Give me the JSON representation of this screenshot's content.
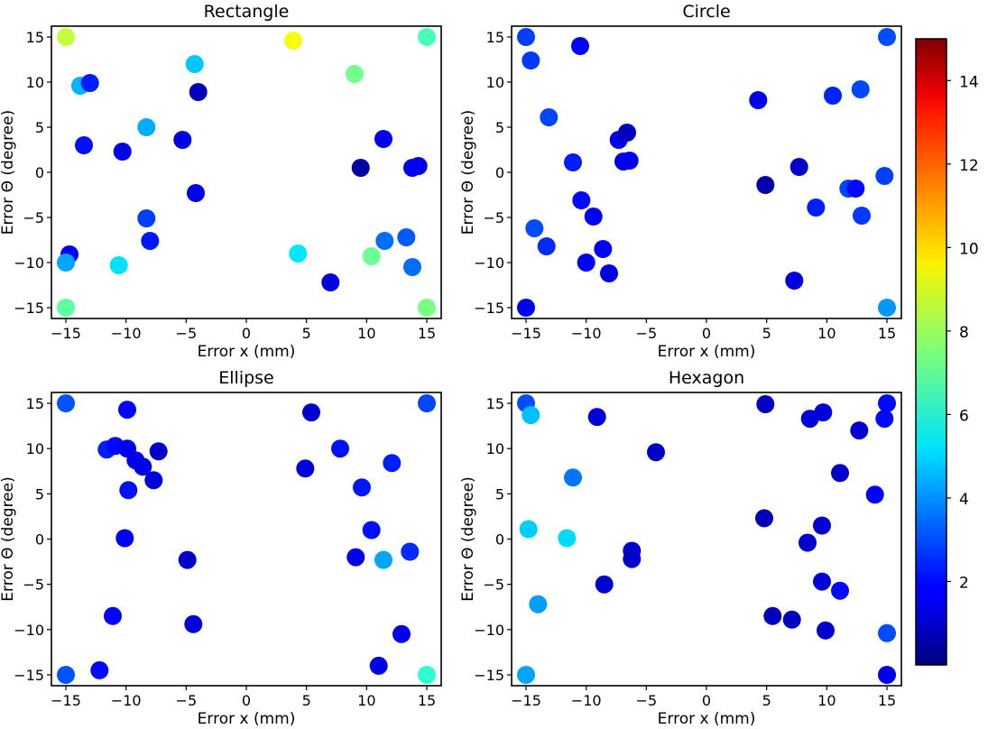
{
  "chart_data": [
    {
      "type": "scatter",
      "title": "Rectangle",
      "xlabel": "Error x (mm)",
      "ylabel": "Error Θ (degree)",
      "xlim": [
        -16.2,
        16.2
      ],
      "ylim": [
        -16.2,
        16.2
      ],
      "xticks": [
        -15,
        -10,
        -5,
        0,
        5,
        10,
        15
      ],
      "yticks": [
        -15,
        -10,
        -5,
        0,
        5,
        10,
        15
      ],
      "grid": false,
      "points": [
        {
          "x": -15,
          "y": 15,
          "c": 8.5
        },
        {
          "x": 3.9,
          "y": 14.6,
          "c": 9.2
        },
        {
          "x": 15,
          "y": 15,
          "c": 6.7
        },
        {
          "x": -4.3,
          "y": 12,
          "c": 4.8
        },
        {
          "x": 9,
          "y": 10.9,
          "c": 7.3
        },
        {
          "x": -13.8,
          "y": 9.6,
          "c": 4.5
        },
        {
          "x": -13,
          "y": 9.9,
          "c": 2.3
        },
        {
          "x": -4,
          "y": 8.9,
          "c": 0.9
        },
        {
          "x": -8.3,
          "y": 5,
          "c": 4.4
        },
        {
          "x": -5.3,
          "y": 3.6,
          "c": 1.5
        },
        {
          "x": 11.4,
          "y": 3.7,
          "c": 1.6
        },
        {
          "x": -13.5,
          "y": 3,
          "c": 2.1
        },
        {
          "x": -10.3,
          "y": 2.3,
          "c": 1.5
        },
        {
          "x": 9.5,
          "y": 0.5,
          "c": 0.5
        },
        {
          "x": 13.8,
          "y": 0.5,
          "c": 1.6
        },
        {
          "x": 14.3,
          "y": 0.7,
          "c": 1.7
        },
        {
          "x": -4.2,
          "y": -2.3,
          "c": 1.5
        },
        {
          "x": -8.3,
          "y": -5.1,
          "c": 2.8
        },
        {
          "x": -8,
          "y": -7.6,
          "c": 2.2
        },
        {
          "x": 13.3,
          "y": -7.2,
          "c": 3.2
        },
        {
          "x": 11.5,
          "y": -7.6,
          "c": 3.5
        },
        {
          "x": -14.7,
          "y": -9.1,
          "c": 1.8
        },
        {
          "x": -15,
          "y": -10,
          "c": 4.3
        },
        {
          "x": -10.6,
          "y": -10.3,
          "c": 5.2
        },
        {
          "x": 4.3,
          "y": -9,
          "c": 5.3
        },
        {
          "x": 10.4,
          "y": -9.3,
          "c": 7.2
        },
        {
          "x": 13.8,
          "y": -10.5,
          "c": 3.5
        },
        {
          "x": 7,
          "y": -12.2,
          "c": 1.4
        },
        {
          "x": -15,
          "y": -15,
          "c": 7
        },
        {
          "x": 15,
          "y": -15,
          "c": 7.4
        }
      ]
    },
    {
      "type": "scatter",
      "title": "Circle",
      "xlabel": "Error x (mm)",
      "ylabel": "Error Θ (degree)",
      "xlim": [
        -16.2,
        16.2
      ],
      "ylim": [
        -16.2,
        16.2
      ],
      "xticks": [
        -15,
        -10,
        -5,
        0,
        5,
        10,
        15
      ],
      "yticks": [
        -15,
        -10,
        -5,
        0,
        5,
        10,
        15
      ],
      "grid": false,
      "points": [
        {
          "x": -15,
          "y": 15,
          "c": 2.8
        },
        {
          "x": -10.5,
          "y": 14,
          "c": 1.9
        },
        {
          "x": 15,
          "y": 15,
          "c": 3.0
        },
        {
          "x": -14.6,
          "y": 12.4,
          "c": 2.7
        },
        {
          "x": 12.8,
          "y": 9.2,
          "c": 2.9
        },
        {
          "x": 10.5,
          "y": 8.5,
          "c": 2.4
        },
        {
          "x": 4.3,
          "y": 8,
          "c": 1.6
        },
        {
          "x": -13.1,
          "y": 6.1,
          "c": 2.9
        },
        {
          "x": -7.3,
          "y": 3.6,
          "c": 1.5
        },
        {
          "x": -6.6,
          "y": 4.4,
          "c": 0.9
        },
        {
          "x": -11.1,
          "y": 1.1,
          "c": 2.3
        },
        {
          "x": -6.9,
          "y": 1.2,
          "c": 1.5
        },
        {
          "x": -6.4,
          "y": 1.3,
          "c": 1.6
        },
        {
          "x": 7.7,
          "y": 0.6,
          "c": 1.1
        },
        {
          "x": 14.8,
          "y": -0.4,
          "c": 2.8
        },
        {
          "x": 4.9,
          "y": -1.4,
          "c": 0.6
        },
        {
          "x": 11.8,
          "y": -1.8,
          "c": 2.9
        },
        {
          "x": 12.4,
          "y": -1.8,
          "c": 2.0
        },
        {
          "x": -10.4,
          "y": -3.1,
          "c": 2.0
        },
        {
          "x": 9.1,
          "y": -3.9,
          "c": 2.3
        },
        {
          "x": 12.9,
          "y": -4.8,
          "c": 2.7
        },
        {
          "x": -9.4,
          "y": -4.9,
          "c": 1.8
        },
        {
          "x": -14.3,
          "y": -6.2,
          "c": 3.0
        },
        {
          "x": -13.3,
          "y": -8.2,
          "c": 2.5
        },
        {
          "x": -8.6,
          "y": -8.5,
          "c": 1.9
        },
        {
          "x": -10,
          "y": -10,
          "c": 1.8
        },
        {
          "x": -8.1,
          "y": -11.2,
          "c": 1.4
        },
        {
          "x": 7.3,
          "y": -12,
          "c": 1.4
        },
        {
          "x": -15,
          "y": -15,
          "c": 1.6
        },
        {
          "x": 15,
          "y": -15,
          "c": 4.1
        }
      ]
    },
    {
      "type": "scatter",
      "title": "Ellipse",
      "xlabel": "Error x (mm)",
      "ylabel": "Error Θ (degree)",
      "xlim": [
        -16.2,
        16.2
      ],
      "ylim": [
        -16.2,
        16.2
      ],
      "xticks": [
        -15,
        -10,
        -5,
        0,
        5,
        10,
        15
      ],
      "yticks": [
        -15,
        -10,
        -5,
        0,
        5,
        10,
        15
      ],
      "grid": false,
      "points": [
        {
          "x": -15,
          "y": 15,
          "c": 3.1
        },
        {
          "x": -9.9,
          "y": 14.3,
          "c": 1.9
        },
        {
          "x": 15,
          "y": 15,
          "c": 2.9
        },
        {
          "x": 5.4,
          "y": 14,
          "c": 1.1
        },
        {
          "x": -11.6,
          "y": 9.9,
          "c": 2.3
        },
        {
          "x": -10.9,
          "y": 10.3,
          "c": 2.0
        },
        {
          "x": -9.9,
          "y": 10,
          "c": 1.7
        },
        {
          "x": -9.2,
          "y": 8.7,
          "c": 1.6
        },
        {
          "x": -8.6,
          "y": 8,
          "c": 1.5
        },
        {
          "x": -7.3,
          "y": 9.7,
          "c": 1.1
        },
        {
          "x": 7.8,
          "y": 10,
          "c": 2.1
        },
        {
          "x": 12.1,
          "y": 8.4,
          "c": 2.3
        },
        {
          "x": 4.9,
          "y": 7.8,
          "c": 1.3
        },
        {
          "x": -9.8,
          "y": 5.4,
          "c": 2.1
        },
        {
          "x": -7.7,
          "y": 6.5,
          "c": 1.3
        },
        {
          "x": 9.6,
          "y": 5.7,
          "c": 2.2
        },
        {
          "x": 10.4,
          "y": 1,
          "c": 2.1
        },
        {
          "x": -10.1,
          "y": 0.1,
          "c": 1.8
        },
        {
          "x": 9.1,
          "y": -2,
          "c": 1.5
        },
        {
          "x": 11.4,
          "y": -2.3,
          "c": 4.3
        },
        {
          "x": 13.6,
          "y": -1.4,
          "c": 2.5
        },
        {
          "x": -4.9,
          "y": -2.3,
          "c": 1.1
        },
        {
          "x": -11.1,
          "y": -8.5,
          "c": 1.9
        },
        {
          "x": -4.4,
          "y": -9.4,
          "c": 1.3
        },
        {
          "x": 12.9,
          "y": -10.5,
          "c": 1.6
        },
        {
          "x": -12.2,
          "y": -14.5,
          "c": 2.0
        },
        {
          "x": 11,
          "y": -14,
          "c": 1.5
        },
        {
          "x": -15,
          "y": -15,
          "c": 3.1
        },
        {
          "x": 15,
          "y": -15,
          "c": 6.3
        }
      ]
    },
    {
      "type": "scatter",
      "title": "Hexagon",
      "xlabel": "Error x (mm)",
      "ylabel": "Error Θ (degree)",
      "xlim": [
        -16.2,
        16.2
      ],
      "ylim": [
        -16.2,
        16.2
      ],
      "xticks": [
        -15,
        -10,
        -5,
        0,
        5,
        10,
        15
      ],
      "yticks": [
        -15,
        -10,
        -5,
        0,
        5,
        10,
        15
      ],
      "grid": false,
      "points": [
        {
          "x": -15,
          "y": 15,
          "c": 3.0
        },
        {
          "x": -14.6,
          "y": 13.7,
          "c": 4.7
        },
        {
          "x": -9.1,
          "y": 13.5,
          "c": 1.3
        },
        {
          "x": 4.9,
          "y": 14.9,
          "c": 1.0
        },
        {
          "x": 8.6,
          "y": 13.3,
          "c": 1.3
        },
        {
          "x": 9.7,
          "y": 14,
          "c": 1.3
        },
        {
          "x": 15,
          "y": 15,
          "c": 2.0
        },
        {
          "x": 14.8,
          "y": 13.3,
          "c": 2.0
        },
        {
          "x": 12.7,
          "y": 12,
          "c": 1.2
        },
        {
          "x": -4.2,
          "y": 9.6,
          "c": 1.0
        },
        {
          "x": -11.1,
          "y": 6.8,
          "c": 3.6
        },
        {
          "x": 11.1,
          "y": 7.3,
          "c": 1.1
        },
        {
          "x": 14,
          "y": 4.9,
          "c": 1.9
        },
        {
          "x": 4.8,
          "y": 2.3,
          "c": 0.9
        },
        {
          "x": 9.6,
          "y": 1.5,
          "c": 1.2
        },
        {
          "x": -14.8,
          "y": 1.1,
          "c": 4.9
        },
        {
          "x": -11.6,
          "y": 0.1,
          "c": 5.1
        },
        {
          "x": 8.4,
          "y": -0.4,
          "c": 1.1
        },
        {
          "x": -6.2,
          "y": -1.3,
          "c": 1.2
        },
        {
          "x": -6.2,
          "y": -2.2,
          "c": 1.1
        },
        {
          "x": -8.5,
          "y": -5,
          "c": 1.2
        },
        {
          "x": 9.6,
          "y": -4.7,
          "c": 1.3
        },
        {
          "x": 11.1,
          "y": -5.7,
          "c": 2.0
        },
        {
          "x": -14,
          "y": -7.2,
          "c": 4.2
        },
        {
          "x": 5.5,
          "y": -8.5,
          "c": 0.9
        },
        {
          "x": 7.1,
          "y": -8.9,
          "c": 1.0
        },
        {
          "x": 9.9,
          "y": -10.1,
          "c": 1.2
        },
        {
          "x": 15,
          "y": -10.4,
          "c": 3.0
        },
        {
          "x": -15,
          "y": -15,
          "c": 4.3
        },
        {
          "x": 15,
          "y": -15,
          "c": 1.6
        }
      ]
    }
  ],
  "colorbar": {
    "colormap": "jet",
    "vmin": 0,
    "vmax": 15,
    "ticks": [
      2,
      4,
      6,
      8,
      10,
      12,
      14
    ]
  }
}
